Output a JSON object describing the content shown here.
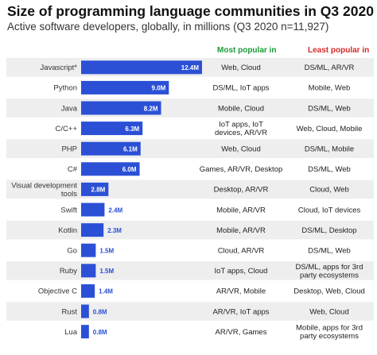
{
  "title": "Size of programming language communities in Q3 2020",
  "subtitle": "Active software developers, globally, in millions (Q3 2020 n=11,927)",
  "columns": {
    "most_popular": "Most popular in",
    "least_popular": "Least popular in"
  },
  "colors": {
    "bar": "#2b50d6",
    "bar_label_inside": "#ffffff",
    "bar_label_outside": "#2b50d6",
    "row_band": "#eeeeee",
    "most_header": "#1a9a3a",
    "least_header": "#d42a2a"
  },
  "chart_data": {
    "type": "bar",
    "orientation": "horizontal",
    "unit": "M",
    "categories": [
      "Javascript*",
      "Python",
      "Java",
      "C/C++",
      "PHP",
      "C#",
      "Visual development tools",
      "Swift",
      "Kotlin",
      "Go",
      "Ruby",
      "Objective C",
      "Rust",
      "Lua"
    ],
    "values": [
      12.4,
      9.0,
      8.2,
      6.3,
      6.1,
      6.0,
      2.8,
      2.4,
      2.3,
      1.5,
      1.5,
      1.4,
      0.8,
      0.8
    ],
    "value_labels": [
      "12.4M",
      "9.0M",
      "8.2M",
      "6.3M",
      "6.1M",
      "6.0M",
      "2.8M",
      "2.4M",
      "2.3M",
      "1.5M",
      "1.5M",
      "1.4M",
      "0.8M",
      "0.8M"
    ],
    "most_popular_in": [
      "Web, Cloud",
      "DS/ML, IoT apps",
      "Mobile, Cloud",
      "IoT apps, IoT devices, AR/VR",
      "Web, Cloud",
      "Games, AR/VR, Desktop",
      "Desktop, AR/VR",
      "Mobile, AR/VR",
      "Mobile, AR/VR",
      "Cloud, AR/VR",
      "IoT apps, Cloud",
      "AR/VR, Mobile",
      "AR/VR, IoT apps",
      "AR/VR, Games"
    ],
    "least_popular_in": [
      "DS/ML, AR/VR",
      "Mobile, Web",
      "DS/ML, Web",
      "Web, Cloud, Mobile",
      "DS/ML, Mobile",
      "DS/ML, Web",
      "Cloud, Web",
      "Cloud, IoT devices",
      "DS/ML, Desktop",
      "DS/ML, Web",
      "DS/ML, apps for 3rd party ecosystems",
      "Desktop, Web, Cloud",
      "Web, Cloud",
      "Mobile, apps for 3rd party ecosystems"
    ],
    "xlim": [
      0,
      12.4
    ],
    "grid": false,
    "legend": "none"
  }
}
